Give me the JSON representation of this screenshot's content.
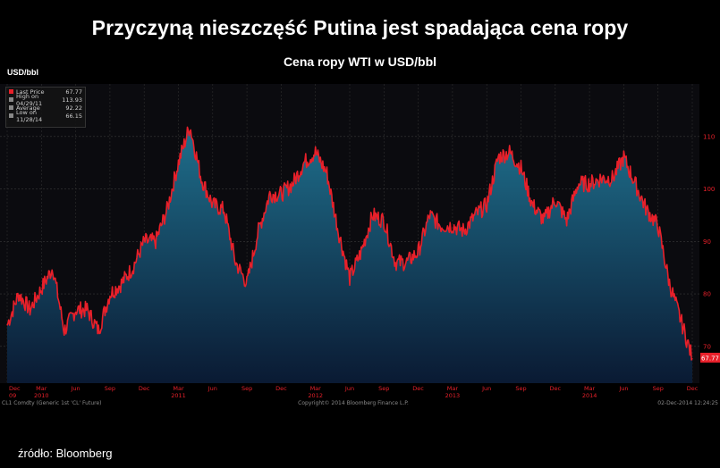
{
  "header": {
    "title": "Przyczyną nieszczęść Putina jest spadająca cena ropy",
    "subtitle": "Cena ropy WTI w USD/bbl",
    "ylabel": "USD/bbl"
  },
  "footer": {
    "source": "źródło: Bloomberg",
    "ticker": "CL1 Comdty (Generic 1st 'CL' Future)",
    "copyright": "Copyright© 2014 Bloomberg Finance L.P.",
    "timestamp": "02-Dec-2014 12:24:25"
  },
  "legend": [
    {
      "label": "Last Price",
      "value": "67.77",
      "color": "#e8202a"
    },
    {
      "label": "High on 04/29/11",
      "value": "113.93",
      "color": "#888888"
    },
    {
      "label": "Average",
      "value": "92.22",
      "color": "#888888"
    },
    {
      "label": "Low on 11/28/14",
      "value": "66.15",
      "color": "#888888"
    }
  ],
  "last_price_tag": "67.77",
  "chart_data": {
    "type": "area",
    "title": "Przyczyną nieszczęść Putina jest spadająca cena ropy",
    "subtitle": "Cena ropy WTI w USD/bbl",
    "ylabel": "USD/bbl",
    "ylim": [
      63,
      120
    ],
    "yticks": [
      70,
      80,
      90,
      100,
      110
    ],
    "x_range": [
      "2009-12",
      "2014-12"
    ],
    "x_month_ticks": [
      "Dec",
      "Mar",
      "Jun",
      "Sep",
      "Dec",
      "Mar",
      "Jun",
      "Sep",
      "Dec",
      "Mar",
      "Jun",
      "Sep",
      "Dec",
      "Mar",
      "Jun",
      "Sep",
      "Dec",
      "Mar",
      "Jun",
      "Sep",
      "Dec"
    ],
    "x_year_ticks": [
      "09",
      "2010",
      "2011",
      "2012",
      "2013",
      "2014"
    ],
    "grid": true,
    "line_color": "#e8202a",
    "fill_color_top": "#1f6f8c",
    "fill_color_bottom": "#0a1a33",
    "points": [
      [
        "2009-12",
        74
      ],
      [
        "2010-01",
        80
      ],
      [
        "2010-02",
        77
      ],
      [
        "2010-03",
        81
      ],
      [
        "2010-04",
        85
      ],
      [
        "2010-05",
        73
      ],
      [
        "2010-06",
        77
      ],
      [
        "2010-07",
        77
      ],
      [
        "2010-08",
        73
      ],
      [
        "2010-09",
        80
      ],
      [
        "2010-10",
        82
      ],
      [
        "2010-11",
        85
      ],
      [
        "2010-12",
        90
      ],
      [
        "2011-01",
        90
      ],
      [
        "2011-02",
        96
      ],
      [
        "2011-03",
        105
      ],
      [
        "2011-04",
        112
      ],
      [
        "2011-05",
        102
      ],
      [
        "2011-06",
        97
      ],
      [
        "2011-07",
        96
      ],
      [
        "2011-08",
        86
      ],
      [
        "2011-09",
        82
      ],
      [
        "2011-10",
        92
      ],
      [
        "2011-11",
        99
      ],
      [
        "2011-12",
        99
      ],
      [
        "2012-01",
        101
      ],
      [
        "2012-02",
        105
      ],
      [
        "2012-03",
        107
      ],
      [
        "2012-04",
        103
      ],
      [
        "2012-05",
        92
      ],
      [
        "2012-06",
        83
      ],
      [
        "2012-07",
        88
      ],
      [
        "2012-08",
        95
      ],
      [
        "2012-09",
        94
      ],
      [
        "2012-10",
        86
      ],
      [
        "2012-11",
        86
      ],
      [
        "2012-12",
        88
      ],
      [
        "2013-01",
        95
      ],
      [
        "2013-02",
        93
      ],
      [
        "2013-03",
        93
      ],
      [
        "2013-04",
        92
      ],
      [
        "2013-05",
        95
      ],
      [
        "2013-06",
        97
      ],
      [
        "2013-07",
        106
      ],
      [
        "2013-08",
        107
      ],
      [
        "2013-09",
        104
      ],
      [
        "2013-10",
        97
      ],
      [
        "2013-11",
        94
      ],
      [
        "2013-12",
        98
      ],
      [
        "2014-01",
        94
      ],
      [
        "2014-02",
        101
      ],
      [
        "2014-03",
        101
      ],
      [
        "2014-04",
        102
      ],
      [
        "2014-05",
        102
      ],
      [
        "2014-06",
        106
      ],
      [
        "2014-07",
        101
      ],
      [
        "2014-08",
        96
      ],
      [
        "2014-09",
        93
      ],
      [
        "2014-10",
        82
      ],
      [
        "2014-11",
        75
      ],
      [
        "2014-12",
        67.77
      ]
    ]
  }
}
